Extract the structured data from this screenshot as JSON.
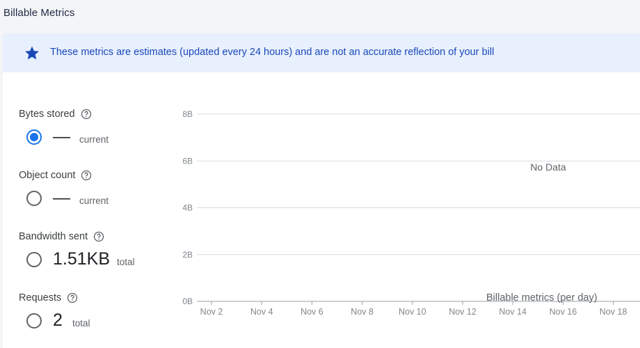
{
  "page": {
    "title": "Billable Metrics"
  },
  "banner": {
    "icon": "star-icon",
    "text": "These metrics are estimates (updated every 24 hours) and are not an accurate reflection of your bill",
    "color": "#1a48b8",
    "background": "#e8f0fe"
  },
  "metrics": [
    {
      "label": "Bytes stored",
      "value": "—",
      "suffix": "current",
      "selected": true
    },
    {
      "label": "Object count",
      "value": "—",
      "suffix": "current",
      "selected": false
    },
    {
      "label": "Bandwidth sent",
      "value": "1.51KB",
      "suffix": "total",
      "selected": false
    },
    {
      "label": "Requests",
      "value": "2",
      "suffix": "total",
      "selected": false
    }
  ],
  "chart_data": {
    "type": "line",
    "xlabel": "Billable metrics (per day)",
    "ylabel": "",
    "y_ticks": [
      "0B",
      "2B",
      "4B",
      "6B",
      "8B"
    ],
    "ylim": [
      0,
      8
    ],
    "x_ticks": [
      "Nov 2",
      "Nov 4",
      "Nov 6",
      "Nov 8",
      "Nov 10",
      "Nov 12",
      "Nov 14",
      "Nov 16",
      "Nov 18"
    ],
    "series": [],
    "empty_message": "No Data",
    "grid": true
  }
}
